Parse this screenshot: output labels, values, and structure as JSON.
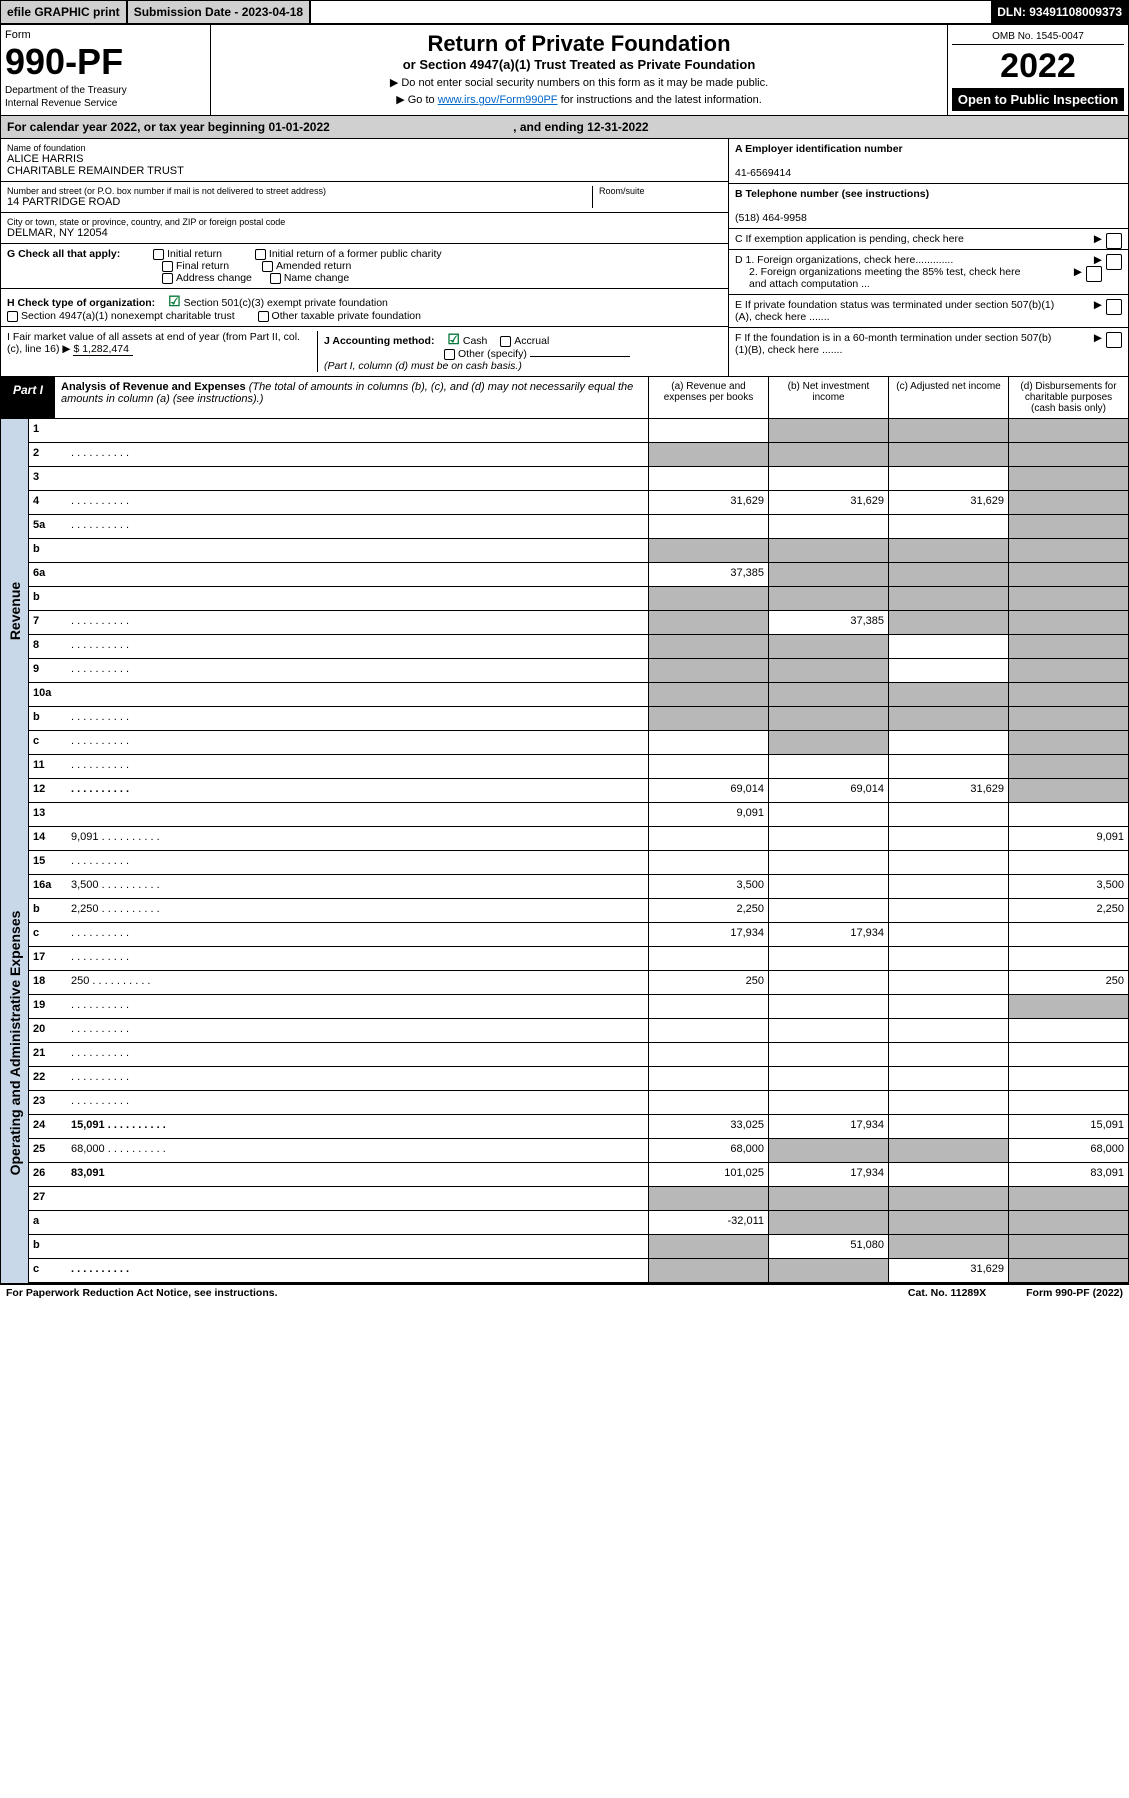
{
  "topbar": {
    "efile": "efile GRAPHIC print",
    "submission_label": "Submission Date - 2023-04-18",
    "dln": "DLN: 93491108009373"
  },
  "header": {
    "form_label": "Form",
    "form_number": "990-PF",
    "dept1": "Department of the Treasury",
    "dept2": "Internal Revenue Service",
    "title": "Return of Private Foundation",
    "subtitle": "or Section 4947(a)(1) Trust Treated as Private Foundation",
    "note1": "▶ Do not enter social security numbers on this form as it may be made public.",
    "note2_pre": "▶ Go to ",
    "note2_link": "www.irs.gov/Form990PF",
    "note2_post": " for instructions and the latest information.",
    "omb": "OMB No. 1545-0047",
    "year": "2022",
    "open": "Open to Public Inspection"
  },
  "cal": {
    "text": "For calendar year 2022, or tax year beginning 01-01-2022",
    "ending": ", and ending 12-31-2022"
  },
  "info": {
    "name_label": "Name of foundation",
    "name1": "ALICE HARRIS",
    "name2": "CHARITABLE REMAINDER TRUST",
    "addr_label": "Number and street (or P.O. box number if mail is not delivered to street address)",
    "addr": "14 PARTRIDGE ROAD",
    "room_label": "Room/suite",
    "city_label": "City or town, state or province, country, and ZIP or foreign postal code",
    "city": "DELMAR, NY  12054",
    "a_label": "A Employer identification number",
    "a_val": "41-6569414",
    "b_label": "B Telephone number (see instructions)",
    "b_val": "(518) 464-9958",
    "c_label": "C If exemption application is pending, check here",
    "g_label": "G Check all that apply:",
    "g_opts": [
      "Initial return",
      "Initial return of a former public charity",
      "Final return",
      "Amended return",
      "Address change",
      "Name change"
    ],
    "d1": "D 1. Foreign organizations, check here.............",
    "d2": "2. Foreign organizations meeting the 85% test, check here and attach computation ...",
    "h_label": "H Check type of organization:",
    "h1": "Section 501(c)(3) exempt private foundation",
    "h2": "Section 4947(a)(1) nonexempt charitable trust",
    "h3": "Other taxable private foundation",
    "e_label": "E  If private foundation status was terminated under section 507(b)(1)(A), check here .......",
    "i_label": "I Fair market value of all assets at end of year (from Part II, col. (c), line 16) ▶",
    "i_val": "$  1,282,474",
    "j_label": "J Accounting method:",
    "j_cash": "Cash",
    "j_accrual": "Accrual",
    "j_other": "Other (specify)",
    "j_note": "(Part I, column (d) must be on cash basis.)",
    "f_label": "F  If the foundation is in a 60-month termination under section 507(b)(1)(B), check here ......."
  },
  "part1": {
    "badge": "Part I",
    "title_bold": "Analysis of Revenue and Expenses",
    "title_rest": " (The total of amounts in columns (b), (c), and (d) may not necessarily equal the amounts in column (a) (see instructions).)",
    "col_a": "(a)   Revenue and expenses per books",
    "col_b": "(b)   Net investment income",
    "col_c": "(c)   Adjusted net income",
    "col_d": "(d)   Disbursements for charitable purposes (cash basis only)"
  },
  "sections": {
    "revenue": "Revenue",
    "expenses": "Operating and Administrative Expenses"
  },
  "rows": [
    {
      "n": "1",
      "d": "",
      "a": "",
      "b": "",
      "c": "",
      "sh": {
        "b": true,
        "c": true,
        "d": true
      }
    },
    {
      "n": "2",
      "d": "",
      "dots": true,
      "a": "",
      "b": "",
      "c": "",
      "sh": {
        "a": true,
        "b": true,
        "c": true,
        "d": true
      }
    },
    {
      "n": "3",
      "d": "",
      "a": "",
      "b": "",
      "c": "",
      "sh": {
        "d": true
      }
    },
    {
      "n": "4",
      "d": "",
      "dots": true,
      "a": "31,629",
      "b": "31,629",
      "c": "31,629",
      "sh": {
        "d": true
      }
    },
    {
      "n": "5a",
      "d": "",
      "dots": true,
      "a": "",
      "b": "",
      "c": "",
      "sh": {
        "d": true
      }
    },
    {
      "n": "b",
      "d": "",
      "a": "",
      "b": "",
      "c": "",
      "sh": {
        "a": true,
        "b": true,
        "c": true,
        "d": true
      }
    },
    {
      "n": "6a",
      "d": "",
      "a": "37,385",
      "b": "",
      "c": "",
      "sh": {
        "b": true,
        "c": true,
        "d": true
      }
    },
    {
      "n": "b",
      "d": "",
      "a": "",
      "b": "",
      "c": "",
      "sh": {
        "a": true,
        "b": true,
        "c": true,
        "d": true
      }
    },
    {
      "n": "7",
      "d": "",
      "dots": true,
      "a": "",
      "b": "37,385",
      "c": "",
      "sh": {
        "a": true,
        "c": true,
        "d": true
      }
    },
    {
      "n": "8",
      "d": "",
      "dots": true,
      "a": "",
      "b": "",
      "c": "",
      "sh": {
        "a": true,
        "b": true,
        "d": true
      }
    },
    {
      "n": "9",
      "d": "",
      "dots": true,
      "a": "",
      "b": "",
      "c": "",
      "sh": {
        "a": true,
        "b": true,
        "d": true
      }
    },
    {
      "n": "10a",
      "d": "",
      "a": "",
      "b": "",
      "c": "",
      "sh": {
        "a": true,
        "b": true,
        "c": true,
        "d": true
      }
    },
    {
      "n": "b",
      "d": "",
      "dots": true,
      "a": "",
      "b": "",
      "c": "",
      "sh": {
        "a": true,
        "b": true,
        "c": true,
        "d": true
      }
    },
    {
      "n": "c",
      "d": "",
      "dots": true,
      "a": "",
      "b": "",
      "c": "",
      "sh": {
        "b": true,
        "d": true
      }
    },
    {
      "n": "11",
      "d": "",
      "dots": true,
      "a": "",
      "b": "",
      "c": "",
      "sh": {
        "d": true
      }
    },
    {
      "n": "12",
      "d": "",
      "bold": true,
      "dots": true,
      "a": "69,014",
      "b": "69,014",
      "c": "31,629",
      "sh": {
        "d": true
      }
    }
  ],
  "exp_rows": [
    {
      "n": "13",
      "d": "",
      "a": "9,091",
      "b": "",
      "c": ""
    },
    {
      "n": "14",
      "d": "9,091",
      "dots": true,
      "a": "",
      "b": "",
      "c": ""
    },
    {
      "n": "15",
      "d": "",
      "dots": true,
      "a": "",
      "b": "",
      "c": ""
    },
    {
      "n": "16a",
      "d": "3,500",
      "dots": true,
      "a": "3,500",
      "b": "",
      "c": ""
    },
    {
      "n": "b",
      "d": "2,250",
      "dots": true,
      "a": "2,250",
      "b": "",
      "c": ""
    },
    {
      "n": "c",
      "d": "",
      "dots": true,
      "a": "17,934",
      "b": "17,934",
      "c": ""
    },
    {
      "n": "17",
      "d": "",
      "dots": true,
      "a": "",
      "b": "",
      "c": ""
    },
    {
      "n": "18",
      "d": "250",
      "dots": true,
      "a": "250",
      "b": "",
      "c": ""
    },
    {
      "n": "19",
      "d": "",
      "dots": true,
      "a": "",
      "b": "",
      "c": "",
      "sh": {
        "d": true
      }
    },
    {
      "n": "20",
      "d": "",
      "dots": true,
      "a": "",
      "b": "",
      "c": ""
    },
    {
      "n": "21",
      "d": "",
      "dots": true,
      "a": "",
      "b": "",
      "c": ""
    },
    {
      "n": "22",
      "d": "",
      "dots": true,
      "a": "",
      "b": "",
      "c": ""
    },
    {
      "n": "23",
      "d": "",
      "dots": true,
      "a": "",
      "b": "",
      "c": ""
    },
    {
      "n": "24",
      "d": "15,091",
      "bold": true,
      "dots": true,
      "a": "33,025",
      "b": "17,934",
      "c": ""
    },
    {
      "n": "25",
      "d": "68,000",
      "dots": true,
      "a": "68,000",
      "b": "",
      "c": "",
      "sh": {
        "b": true,
        "c": true
      }
    },
    {
      "n": "26",
      "d": "83,091",
      "bold": true,
      "a": "101,025",
      "b": "17,934",
      "c": ""
    },
    {
      "n": "27",
      "d": "",
      "a": "",
      "b": "",
      "c": "",
      "sh": {
        "a": true,
        "b": true,
        "c": true,
        "d": true
      }
    },
    {
      "n": "a",
      "d": "",
      "bold": true,
      "a": "-32,011",
      "b": "",
      "c": "",
      "sh": {
        "b": true,
        "c": true,
        "d": true
      }
    },
    {
      "n": "b",
      "d": "",
      "bold": true,
      "a": "",
      "b": "51,080",
      "c": "",
      "sh": {
        "a": true,
        "c": true,
        "d": true
      }
    },
    {
      "n": "c",
      "d": "",
      "bold": true,
      "dots": true,
      "a": "",
      "b": "",
      "c": "31,629",
      "sh": {
        "a": true,
        "b": true,
        "d": true
      }
    }
  ],
  "footer": {
    "left": "For Paperwork Reduction Act Notice, see instructions.",
    "mid": "Cat. No. 11289X",
    "right": "Form 990-PF (2022)"
  }
}
